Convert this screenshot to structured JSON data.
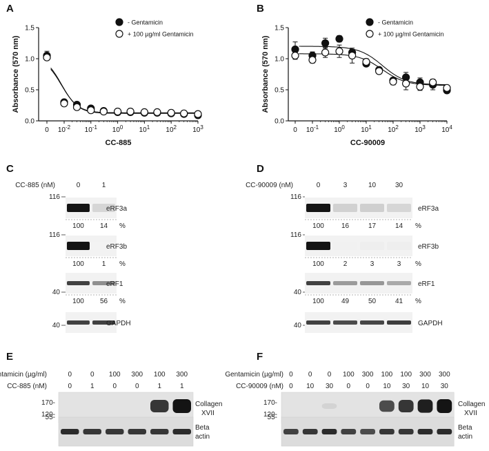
{
  "panels": {
    "A": "A",
    "B": "B",
    "C": "C",
    "D": "D",
    "E": "E",
    "F": "F"
  },
  "chart_data": [
    {
      "panel": "A",
      "type": "scatter",
      "xlabel": "CC-885",
      "ylabel": "Absorbance (570 nm)",
      "xscale": "log (with 0)",
      "ylim": [
        0,
        1.5
      ],
      "xticks": [
        "0",
        "10-2",
        "10-1",
        "100",
        "101",
        "102",
        "103"
      ],
      "yticks": [
        "0.0",
        "0.5",
        "1.0",
        "1.5"
      ],
      "legend_position": "top-right",
      "series": [
        {
          "name": "- Gentamicin",
          "marker": "filled",
          "x": [
            0,
            0.01,
            0.03,
            0.1,
            0.3,
            1,
            3,
            10,
            30,
            100,
            300,
            1000
          ],
          "y": [
            1.05,
            0.3,
            0.26,
            0.2,
            0.16,
            0.14,
            0.14,
            0.13,
            0.13,
            0.12,
            0.11,
            0.09
          ],
          "err": [
            0.07,
            0.02,
            0.02,
            0.02,
            0.01,
            0.01,
            0.01,
            0.01,
            0.01,
            0.01,
            0.01,
            0.01
          ]
        },
        {
          "name": "+ 100 µg/ml Gentamicin",
          "marker": "open",
          "x": [
            0,
            0.01,
            0.03,
            0.1,
            0.3,
            1,
            3,
            10,
            30,
            100,
            300,
            1000
          ],
          "y": [
            1.02,
            0.28,
            0.22,
            0.17,
            0.15,
            0.15,
            0.15,
            0.14,
            0.14,
            0.13,
            0.12,
            0.11
          ],
          "err": [
            0.03,
            0.02,
            0.02,
            0.02,
            0.01,
            0.01,
            0.01,
            0.01,
            0.01,
            0.01,
            0.01,
            0.01
          ]
        }
      ]
    },
    {
      "panel": "B",
      "type": "scatter",
      "xlabel": "CC-90009",
      "ylabel": "Absorbance (570 nm)",
      "xscale": "log (with 0)",
      "ylim": [
        0,
        1.5
      ],
      "xticks": [
        "0",
        "10-1",
        "100",
        "101",
        "102",
        "103",
        "104"
      ],
      "yticks": [
        "0.0",
        "0.5",
        "1.0",
        "1.5"
      ],
      "legend_position": "top-right",
      "series": [
        {
          "name": "- Gentamicin",
          "marker": "filled",
          "x": [
            0,
            0.1,
            0.3,
            1,
            3,
            10,
            30,
            100,
            300,
            1000,
            3000,
            10000
          ],
          "y": [
            1.15,
            1.05,
            1.25,
            1.32,
            1.1,
            0.92,
            0.82,
            0.65,
            0.7,
            0.62,
            0.58,
            0.49
          ],
          "err": [
            0.12,
            0.06,
            0.08,
            0.05,
            0.05,
            0.03,
            0.04,
            0.05,
            0.08,
            0.07,
            0.08,
            0.03
          ]
        },
        {
          "name": "+ 100 µg/ml Gentamicin",
          "marker": "open",
          "x": [
            0,
            0.1,
            0.3,
            1,
            3,
            10,
            30,
            100,
            300,
            1000,
            3000,
            10000
          ],
          "y": [
            1.05,
            0.98,
            1.1,
            1.12,
            1.05,
            0.95,
            0.8,
            0.63,
            0.6,
            0.55,
            0.62,
            0.53
          ],
          "err": [
            0.06,
            0.05,
            0.08,
            0.1,
            0.12,
            0.05,
            0.04,
            0.05,
            0.1,
            0.06,
            0.05,
            0.03
          ]
        }
      ]
    }
  ],
  "C": {
    "treatment_label": "CC-885 (nM)",
    "conc": [
      "0",
      "1"
    ],
    "mw": {
      "a": "116",
      "b": "116",
      "c": "40",
      "d": "40"
    },
    "rows": [
      {
        "name": "eRF3a",
        "vals": [
          "100",
          "14"
        ],
        "unit": "%",
        "intensity": [
          1.0,
          0.14
        ]
      },
      {
        "name": "eRF3b",
        "vals": [
          "100",
          "1"
        ],
        "unit": "%",
        "intensity": [
          1.0,
          0.01
        ]
      },
      {
        "name": "eRF1",
        "vals": [
          "100",
          "56"
        ],
        "unit": "%",
        "intensity": [
          0.8,
          0.45
        ]
      },
      {
        "name": "GAPDH",
        "intensity": [
          0.8,
          0.8
        ]
      }
    ]
  },
  "D": {
    "treatment_label": "CC-90009 (nM)",
    "conc": [
      "0",
      "3",
      "10",
      "30"
    ],
    "mw": {
      "a": "116",
      "b": "116",
      "c": "40",
      "d": "40"
    },
    "rows": [
      {
        "name": "eRF3a",
        "vals": [
          "100",
          "16",
          "17",
          "14"
        ],
        "unit": "%",
        "intensity": [
          1.0,
          0.16,
          0.17,
          0.14
        ]
      },
      {
        "name": "eRF3b",
        "vals": [
          "100",
          "2",
          "3",
          "3"
        ],
        "unit": "%",
        "intensity": [
          1.0,
          0.02,
          0.03,
          0.03
        ]
      },
      {
        "name": "eRF1",
        "vals": [
          "100",
          "49",
          "50",
          "41"
        ],
        "unit": "%",
        "intensity": [
          0.8,
          0.4,
          0.42,
          0.34
        ]
      },
      {
        "name": "GAPDH",
        "intensity": [
          0.8,
          0.75,
          0.78,
          0.82
        ]
      }
    ]
  },
  "E": {
    "row1_label": "Gentamicin (µg/ml)",
    "row2_label": "CC-885 (nM)",
    "row1": [
      "0",
      "0",
      "100",
      "300",
      "100",
      "300"
    ],
    "row2": [
      "0",
      "1",
      "0",
      "0",
      "1",
      "1"
    ],
    "mw_top": [
      "170-",
      "120-"
    ],
    "mw_bottom": "55-",
    "blot1_label": [
      "Collagen",
      "XVII"
    ],
    "blot2_label": [
      "Beta",
      "actin"
    ],
    "collagen_intensity": [
      0,
      0,
      0,
      0,
      0.85,
      1.0
    ],
    "actin_intensity": [
      0.9,
      0.85,
      0.85,
      0.85,
      0.85,
      0.9
    ]
  },
  "F": {
    "row1_label": "Gentamicin (µg/ml)",
    "row2_label": "CC-90009 (nM)",
    "row1": [
      "0",
      "0",
      "0",
      "100",
      "300",
      "100",
      "100",
      "300",
      "300"
    ],
    "row2": [
      "0",
      "10",
      "30",
      "0",
      "0",
      "10",
      "30",
      "10",
      "30"
    ],
    "mw_top": [
      "170-",
      "120-"
    ],
    "mw_bottom": "55-",
    "blot1_label": [
      "Collagen",
      "XVII"
    ],
    "blot2_label": [
      "Beta",
      "actin"
    ],
    "collagen_intensity": [
      0,
      0,
      0.15,
      0,
      0,
      0.75,
      0.85,
      0.95,
      1.0
    ],
    "actin_intensity": [
      0.8,
      0.85,
      0.9,
      0.8,
      0.75,
      0.85,
      0.85,
      0.9,
      0.9
    ]
  }
}
